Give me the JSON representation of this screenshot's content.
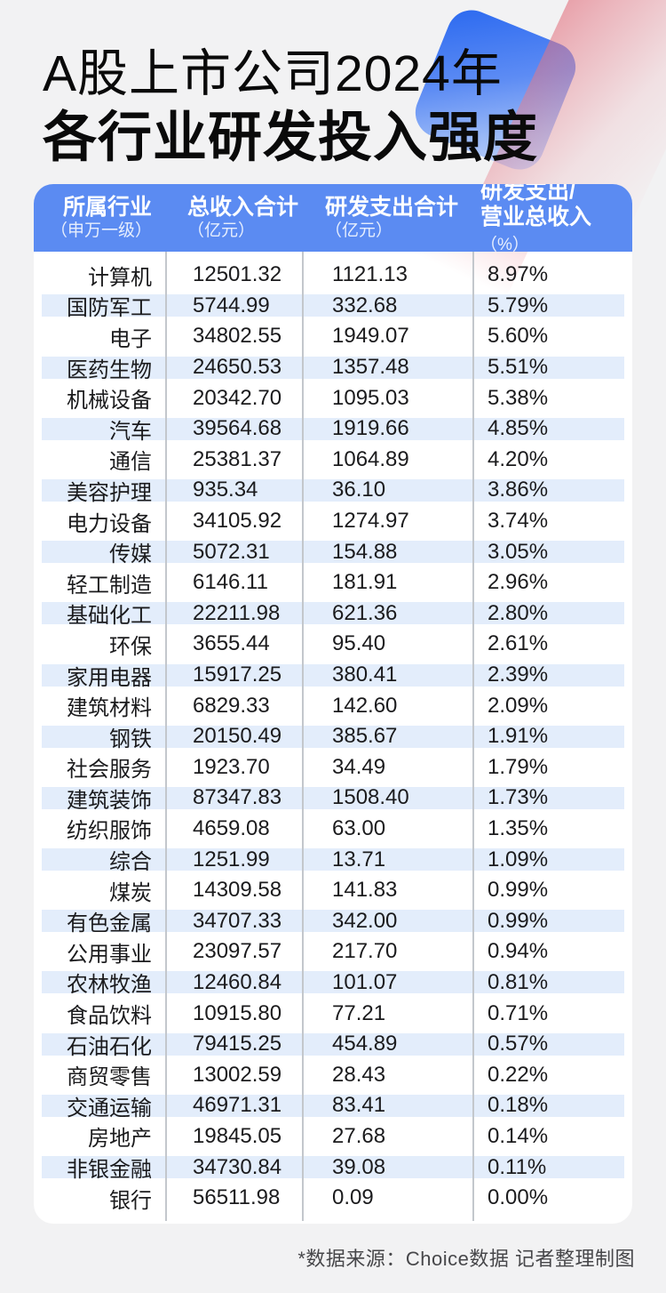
{
  "title": {
    "line1": "A股上市公司2024年",
    "line2": "各行业研发投入强度"
  },
  "table": {
    "columns": [
      {
        "label": "所属行业",
        "unit": "（申万一级）"
      },
      {
        "label": "总收入合计",
        "unit": "（亿元）"
      },
      {
        "label": "研发支出合计",
        "unit": "（亿元）"
      },
      {
        "label": "研发支出/",
        "label2": "营业总收入",
        "unit": "（%）"
      }
    ],
    "rows": [
      [
        "计算机",
        "12501.32",
        "1121.13",
        "8.97%"
      ],
      [
        "国防军工",
        "5744.99",
        "332.68",
        "5.79%"
      ],
      [
        "电子",
        "34802.55",
        "1949.07",
        "5.60%"
      ],
      [
        "医药生物",
        "24650.53",
        "1357.48",
        "5.51%"
      ],
      [
        "机械设备",
        "20342.70",
        "1095.03",
        "5.38%"
      ],
      [
        "汽车",
        "39564.68",
        "1919.66",
        "4.85%"
      ],
      [
        "通信",
        "25381.37",
        "1064.89",
        "4.20%"
      ],
      [
        "美容护理",
        "935.34",
        "36.10",
        "3.86%"
      ],
      [
        "电力设备",
        "34105.92",
        "1274.97",
        "3.74%"
      ],
      [
        "传媒",
        "5072.31",
        "154.88",
        "3.05%"
      ],
      [
        "轻工制造",
        "6146.11",
        "181.91",
        "2.96%"
      ],
      [
        "基础化工",
        "22211.98",
        "621.36",
        "2.80%"
      ],
      [
        "环保",
        "3655.44",
        "95.40",
        "2.61%"
      ],
      [
        "家用电器",
        "15917.25",
        "380.41",
        "2.39%"
      ],
      [
        "建筑材料",
        "6829.33",
        "142.60",
        "2.09%"
      ],
      [
        "钢铁",
        "20150.49",
        "385.67",
        "1.91%"
      ],
      [
        "社会服务",
        "1923.70",
        "34.49",
        "1.79%"
      ],
      [
        "建筑装饰",
        "87347.83",
        "1508.40",
        "1.73%"
      ],
      [
        "纺织服饰",
        "4659.08",
        "63.00",
        "1.35%"
      ],
      [
        "综合",
        "1251.99",
        "13.71",
        "1.09%"
      ],
      [
        "煤炭",
        "14309.58",
        "141.83",
        "0.99%"
      ],
      [
        "有色金属",
        "34707.33",
        "342.00",
        "0.99%"
      ],
      [
        "公用事业",
        "23097.57",
        "217.70",
        "0.94%"
      ],
      [
        "农林牧渔",
        "12460.84",
        "101.07",
        "0.81%"
      ],
      [
        "食品饮料",
        "10915.80",
        "77.21",
        "0.71%"
      ],
      [
        "石油石化",
        "79415.25",
        "454.89",
        "0.57%"
      ],
      [
        "商贸零售",
        "13002.59",
        "28.43",
        "0.22%"
      ],
      [
        "交通运输",
        "46971.31",
        "83.41",
        "0.18%"
      ],
      [
        "房地产",
        "19845.05",
        "27.68",
        "0.14%"
      ],
      [
        "非银金融",
        "34730.84",
        "39.08",
        "0.11%"
      ],
      [
        "银行",
        "56511.98",
        "0.09",
        "0.00%"
      ]
    ]
  },
  "footer": {
    "note": "*数据来源：Choice数据 记者整理制图"
  },
  "colors": {
    "page_background": "#f2f2f3",
    "header_blue": "#5b8bf2",
    "stripe_blue": "#e3edfb",
    "divider_gray": "#c3c7cc",
    "decor_blue": "#2f6cf0",
    "decor_pink": "#e07d8a",
    "body_text": "#1b1b1d",
    "footer_text": "#47474a"
  },
  "chart_data": {
    "type": "table",
    "title": "A股上市公司2024年各行业研发投入强度",
    "columns": [
      "所属行业（申万一级）",
      "总收入合计（亿元）",
      "研发支出合计（亿元）",
      "研发支出/营业总收入（%）"
    ],
    "categories": [
      "计算机",
      "国防军工",
      "电子",
      "医药生物",
      "机械设备",
      "汽车",
      "通信",
      "美容护理",
      "电力设备",
      "传媒",
      "轻工制造",
      "基础化工",
      "环保",
      "家用电器",
      "建筑材料",
      "钢铁",
      "社会服务",
      "建筑装饰",
      "纺织服饰",
      "综合",
      "煤炭",
      "有色金属",
      "公用事业",
      "农林牧渔",
      "食品饮料",
      "石油石化",
      "商贸零售",
      "交通运输",
      "房地产",
      "非银金融",
      "银行"
    ],
    "series": [
      {
        "name": "总收入合计(亿元)",
        "values": [
          12501.32,
          5744.99,
          34802.55,
          24650.53,
          20342.7,
          39564.68,
          25381.37,
          935.34,
          34105.92,
          5072.31,
          6146.11,
          22211.98,
          3655.44,
          15917.25,
          6829.33,
          20150.49,
          1923.7,
          87347.83,
          4659.08,
          1251.99,
          14309.58,
          34707.33,
          23097.57,
          12460.84,
          10915.8,
          79415.25,
          13002.59,
          46971.31,
          19845.05,
          34730.84,
          56511.98
        ]
      },
      {
        "name": "研发支出合计(亿元)",
        "values": [
          1121.13,
          332.68,
          1949.07,
          1357.48,
          1095.03,
          1919.66,
          1064.89,
          36.1,
          1274.97,
          154.88,
          181.91,
          621.36,
          95.4,
          380.41,
          142.6,
          385.67,
          34.49,
          1508.4,
          63.0,
          13.71,
          141.83,
          342.0,
          217.7,
          101.07,
          77.21,
          454.89,
          28.43,
          83.41,
          27.68,
          39.08,
          0.09
        ]
      },
      {
        "name": "研发支出/营业总收入(%)",
        "values": [
          8.97,
          5.79,
          5.6,
          5.51,
          5.38,
          4.85,
          4.2,
          3.86,
          3.74,
          3.05,
          2.96,
          2.8,
          2.61,
          2.39,
          2.09,
          1.91,
          1.79,
          1.73,
          1.35,
          1.09,
          0.99,
          0.99,
          0.94,
          0.81,
          0.71,
          0.57,
          0.22,
          0.18,
          0.14,
          0.11,
          0.0
        ]
      }
    ]
  }
}
